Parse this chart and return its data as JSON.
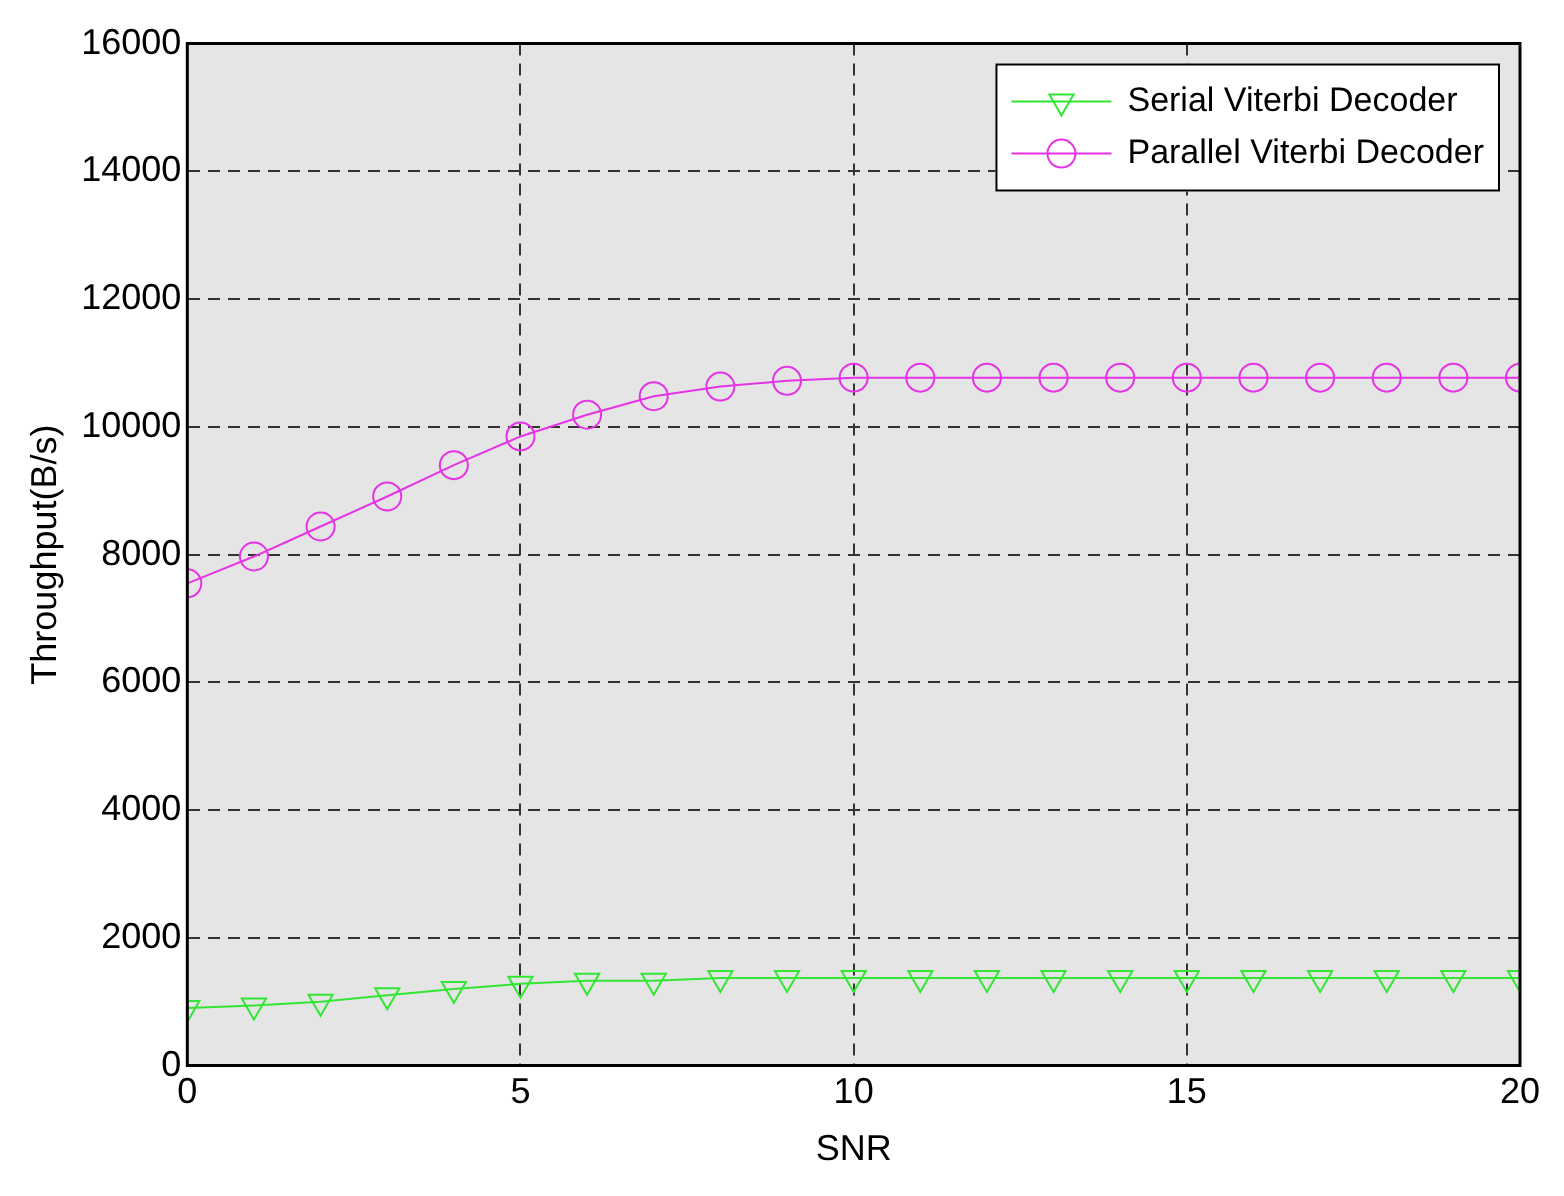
{
  "chart_data": {
    "type": "line",
    "xlabel": "SNR",
    "ylabel": "Throughput(B/s)",
    "x": [
      0,
      1,
      2,
      3,
      4,
      5,
      6,
      7,
      8,
      9,
      10,
      11,
      12,
      13,
      14,
      15,
      16,
      17,
      18,
      19,
      20
    ],
    "series": [
      {
        "name": "Serial Viterbi Decoder",
        "color": "#33e633",
        "marker": "triangle",
        "values": [
          900,
          940,
          1000,
          1100,
          1200,
          1280,
          1330,
          1330,
          1370,
          1370,
          1370,
          1370,
          1370,
          1370,
          1370,
          1370,
          1370,
          1370,
          1370,
          1370,
          1370
        ]
      },
      {
        "name": "Parallel Viterbi Decoder",
        "color": "#e633e6",
        "marker": "circle",
        "values": [
          7550,
          7970,
          8440,
          8910,
          9400,
          9850,
          10190,
          10480,
          10630,
          10720,
          10770,
          10770,
          10770,
          10770,
          10770,
          10770,
          10770,
          10770,
          10770,
          10770,
          10770
        ]
      }
    ],
    "xlim": [
      0,
      20
    ],
    "xticks": [
      0,
      5,
      10,
      15,
      20
    ],
    "ylim": [
      0,
      16000
    ],
    "yticks": [
      0,
      2000,
      4000,
      6000,
      8000,
      10000,
      12000,
      14000,
      16000
    ],
    "grid": true,
    "legend": "top right",
    "line_style": "solid"
  }
}
